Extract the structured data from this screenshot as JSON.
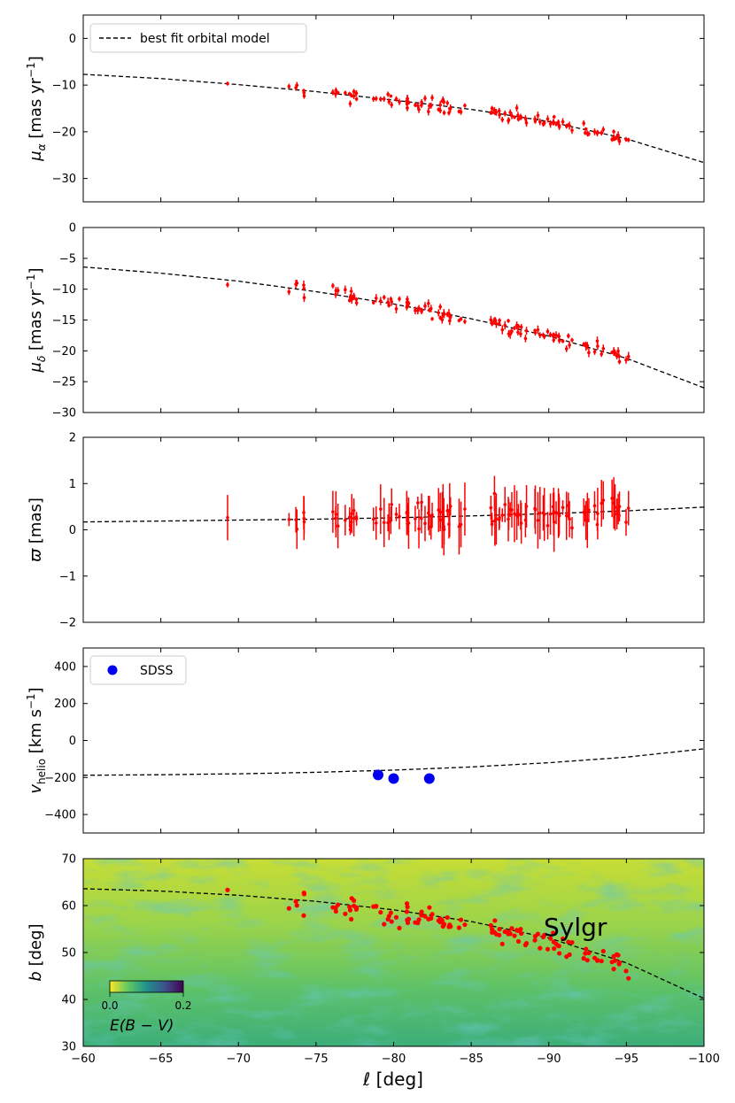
{
  "chart_data": {
    "type": "multi-panel-scatter",
    "shared_xaxis": {
      "label": "ℓ [deg]",
      "xlim": [
        -60,
        -100
      ],
      "ticks": [
        -60,
        -65,
        -70,
        -75,
        -80,
        -85,
        -90,
        -95,
        -100
      ],
      "tick_labels": [
        "−60",
        "−65",
        "−70",
        "−75",
        "−80",
        "−85",
        "−90",
        "−95",
        "−100"
      ]
    },
    "panels": [
      {
        "id": "pmra",
        "ylabel_main": "μ",
        "ylabel_sub": "α",
        "ylabel_unit": " [mas yr",
        "ylabel_sup": "−1",
        "ylabel_close": "]",
        "ylim": [
          -35,
          5
        ],
        "yticks": [
          0,
          -10,
          -20,
          -30
        ],
        "ytick_labels": [
          "0",
          "−10",
          "−20",
          "−30"
        ],
        "legend": {
          "label": "best fit orbital model",
          "style": "dashed",
          "position": "top-left"
        },
        "model": {
          "x": [
            -60,
            -65,
            -70,
            -75,
            -80,
            -85,
            -90,
            -95,
            -100
          ],
          "y": [
            -7.7,
            -8.6,
            -9.9,
            -11.4,
            -13.2,
            -15.2,
            -17.8,
            -21.5,
            -26.6
          ]
        },
        "points": {
          "color": "#ff0000",
          "n": 120,
          "x_range": [
            -69.3,
            -95.1
          ],
          "description": "stars along model with scatter"
        }
      },
      {
        "id": "pmdec",
        "ylabel_main": "μ",
        "ylabel_sub": "δ",
        "ylabel_unit": " [mas yr",
        "ylabel_sup": "−1",
        "ylabel_close": "]",
        "ylim": [
          -30,
          0
        ],
        "yticks": [
          0,
          -5,
          -10,
          -15,
          -20,
          -25,
          -30
        ],
        "ytick_labels": [
          "0",
          "−5",
          "−10",
          "−15",
          "−20",
          "−25",
          "−30"
        ],
        "model": {
          "x": [
            -60,
            -65,
            -70,
            -75,
            -80,
            -85,
            -90,
            -95,
            -100
          ],
          "y": [
            -6.4,
            -7.4,
            -8.7,
            -10.4,
            -12.4,
            -14.8,
            -17.6,
            -21.2,
            -26.0
          ]
        },
        "points": {
          "color": "#ff0000",
          "n": 120
        }
      },
      {
        "id": "parallax",
        "ylabel_main": "ϖ",
        "ylabel_unit": " [mas]",
        "ylim": [
          -2,
          2
        ],
        "yticks": [
          2,
          1,
          0,
          -1,
          -2
        ],
        "ytick_labels": [
          "2",
          "1",
          "0",
          "−1",
          "−2"
        ],
        "model": {
          "x": [
            -60,
            -65,
            -70,
            -75,
            -80,
            -85,
            -90,
            -95,
            -100
          ],
          "y": [
            0.17,
            0.19,
            0.21,
            0.23,
            0.26,
            0.3,
            0.35,
            0.41,
            0.49
          ]
        },
        "points": {
          "color": "#ff0000",
          "n": 110,
          "error_bars": true
        }
      },
      {
        "id": "vhelio",
        "ylabel_main": "v",
        "ylabel_sub": "helio",
        "ylabel_unit": " [km s",
        "ylabel_sup": "−1",
        "ylabel_close": "]",
        "ylim": [
          -500,
          500
        ],
        "yticks": [
          400,
          200,
          0,
          -200,
          -400
        ],
        "ytick_labels": [
          "400",
          "200",
          "0",
          "−200",
          "−400"
        ],
        "legend": {
          "label": "SDSS",
          "marker": "circle",
          "color": "#0000ee",
          "position": "top-left"
        },
        "model": {
          "x": [
            -60,
            -65,
            -70,
            -75,
            -80,
            -85,
            -90,
            -95,
            -100
          ],
          "y": [
            -188,
            -185,
            -180,
            -172,
            -160,
            -143,
            -120,
            -90,
            -45
          ]
        },
        "sdss_points": [
          {
            "l": -79.0,
            "v": -186
          },
          {
            "l": -80.0,
            "v": -206
          },
          {
            "l": -82.3,
            "v": -206
          }
        ]
      },
      {
        "id": "sky",
        "ylabel_main": "b",
        "ylabel_unit": " [deg]",
        "ylim": [
          30,
          70
        ],
        "yticks": [
          70,
          60,
          50,
          40,
          30
        ],
        "ytick_labels": [
          "70",
          "60",
          "50",
          "40",
          "30"
        ],
        "stream_name": "Sylgr",
        "colorbar": {
          "label": "E(B − V)",
          "min_label": "0.0",
          "max_label": "0.2",
          "colormap": "viridis"
        },
        "model": {
          "x": [
            -60,
            -65,
            -70,
            -75,
            -80,
            -85,
            -90,
            -95,
            -100
          ],
          "y": [
            63.6,
            63.1,
            62.2,
            60.9,
            59.1,
            56.6,
            53.1,
            47.8,
            40.2
          ]
        },
        "points": {
          "color": "#ff0000",
          "n": 120
        }
      }
    ]
  }
}
